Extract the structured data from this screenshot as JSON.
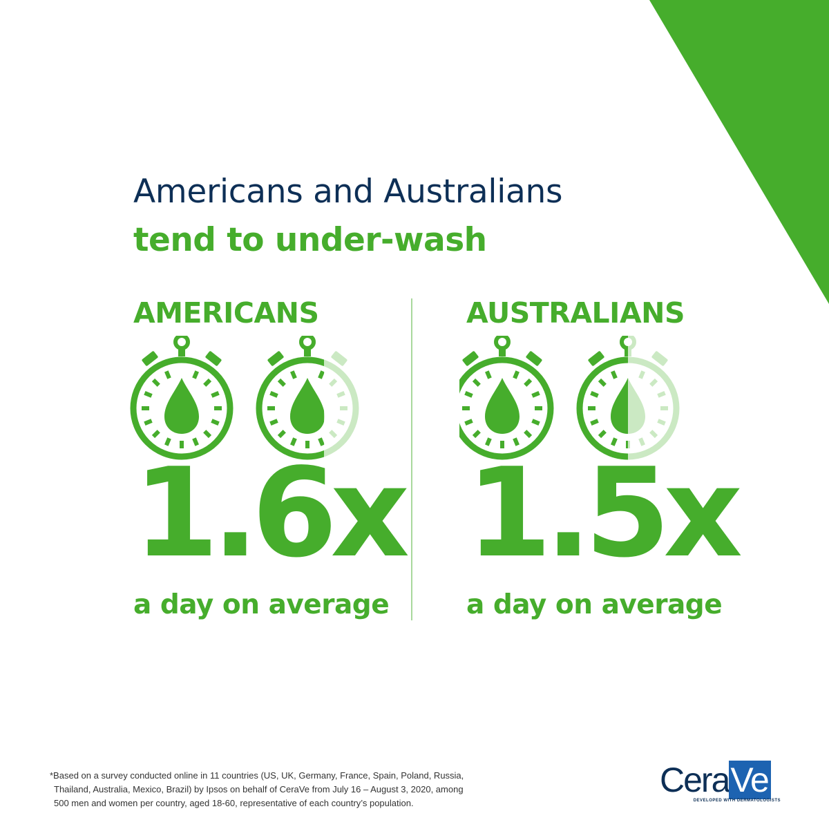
{
  "headline": {
    "line1": "Americans and Australians",
    "line2": "tend to under-wash"
  },
  "stats": [
    {
      "country": "AMERICANS",
      "value": "1.6x",
      "caption": "a day on average",
      "icon_fill": 1.6
    },
    {
      "country": "AUSTRALIANS",
      "value": "1.5x",
      "caption": "a day on average",
      "icon_fill": 1.5
    }
  ],
  "footnote": {
    "line1": "*Based on a survey conducted online in 11 countries (US, UK, Germany, France, Spain, Poland, Russia,",
    "line2": "Thailand, Australia, Mexico, Brazil) by Ipsos on behalf of CeraVe from July 16 – August 3, 2020, among",
    "line3": "500 men and women per country, aged 18-60, representative of each country’s population."
  },
  "logo": {
    "word_cera": "Cera",
    "word_ve": "Ve",
    "tagline": "DEVELOPED WITH DERMATOLOGISTS"
  },
  "colors": {
    "brand_green": "#46ad2c",
    "light_green": "#cbe9c3",
    "navy": "#0d2f56",
    "logo_blue": "#1d63b1"
  },
  "icons": [
    "stopwatch-icon",
    "water-drop-icon"
  ]
}
